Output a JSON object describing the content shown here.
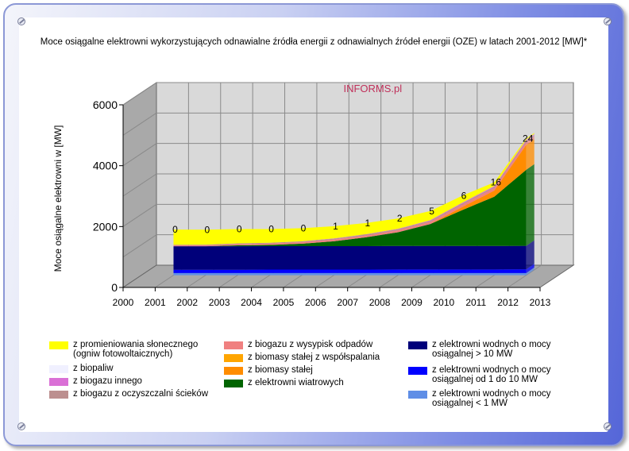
{
  "title": "Moce osiągalne elektrowni wykorzystujących odnawialne źródła energii z odnawialnych źródeł energii (OZE) w latach 2001-2012 [MW]*",
  "watermark": "INFORMS.pl",
  "chart_data": {
    "type": "area",
    "stacked": true,
    "three_d": true,
    "title": "Moce osiągalne elektrowni wykorzystujących odnawialne źródła energii z odnawialnych źródeł energii (OZE) w latach 2001-2012 [MW]*",
    "xlabel": "",
    "ylabel": "Moce osiągalne elektrowni w [MW]",
    "x": [
      2001,
      2002,
      2003,
      2004,
      2005,
      2006,
      2007,
      2008,
      2009,
      2010,
      2011,
      2012
    ],
    "x_ticks": [
      "2000",
      "2001",
      "2002",
      "2003",
      "2004",
      "2005",
      "2006",
      "2007",
      "2008",
      "2009",
      "2010",
      "2011",
      "2012",
      "2013"
    ],
    "y_ticks": [
      "0",
      "2000",
      "4000",
      "6000"
    ],
    "ylim": [
      0,
      6000
    ],
    "grid": true,
    "legend_position": "bottom",
    "series": [
      {
        "name": "z elektrowni wodnych o mocy osiągalnej < 1 MW",
        "color": "#5f8ee6",
        "values": [
          70,
          70,
          70,
          70,
          70,
          70,
          70,
          70,
          70,
          70,
          70,
          70
        ]
      },
      {
        "name": "z elektrowni wodnych o mocy osiągalnej od 1 do 10 MW",
        "color": "#0000ff",
        "values": [
          110,
          110,
          110,
          115,
          115,
          115,
          115,
          120,
          120,
          120,
          120,
          125
        ]
      },
      {
        "name": "z elektrowni wodnych o mocy osiągalnej > 10 MW",
        "color": "#00007a",
        "values": [
          770,
          770,
          770,
          770,
          770,
          770,
          770,
          770,
          770,
          770,
          770,
          770
        ]
      },
      {
        "name": "z elektrowni wiatrowych",
        "color": "#006400",
        "values": [
          0,
          0,
          30,
          40,
          80,
          160,
          290,
          450,
          720,
          1180,
          1620,
          2500
        ]
      },
      {
        "name": "z biomasy stałej",
        "color": "#ff8c00",
        "values": [
          0,
          0,
          0,
          0,
          0,
          0,
          0,
          0,
          0,
          100,
          200,
          820
        ]
      },
      {
        "name": "z biomasy stałej z współspalania",
        "color": "#ffa500",
        "values": [
          0,
          0,
          0,
          0,
          0,
          0,
          0,
          0,
          0,
          0,
          0,
          0
        ]
      },
      {
        "name": "z biogazu z wysypisk odpadów",
        "color": "#f08080",
        "values": [
          30,
          35,
          40,
          45,
          50,
          55,
          60,
          65,
          70,
          75,
          80,
          85
        ]
      },
      {
        "name": "z biogazu z oczyszczalni ścieków",
        "color": "#bc8f8f",
        "values": [
          20,
          20,
          25,
          25,
          25,
          30,
          30,
          35,
          35,
          40,
          40,
          45
        ]
      },
      {
        "name": "z biogazu innego",
        "color": "#da70d6",
        "values": [
          0,
          0,
          0,
          0,
          5,
          10,
          10,
          15,
          20,
          25,
          30,
          40
        ]
      },
      {
        "name": "z biopaliw",
        "color": "#f0f0ff",
        "values": [
          0,
          0,
          0,
          0,
          0,
          0,
          0,
          0,
          0,
          0,
          0,
          0
        ]
      },
      {
        "name": "z promieniowania słonecznego (ogniw fotowoltaicznych)",
        "color": "#ffff00",
        "values": [
          500,
          490,
          470,
          450,
          430,
          400,
          370,
          340,
          300,
          230,
          120,
          40
        ]
      }
    ],
    "data_labels": [
      "0",
      "0",
      "0",
      "0",
      "0",
      "1",
      "1",
      "2",
      "5",
      "6",
      "16",
      "24"
    ]
  },
  "legend": {
    "col1": [
      {
        "label": "z promieniowania słonecznego (ogniw fotowoltaicznych)",
        "color": "#ffff00"
      },
      {
        "label": "z biopaliw",
        "color": "#f0f0ff"
      },
      {
        "label": "z biogazu innego",
        "color": "#da70d6"
      },
      {
        "label": "z biogazu z oczyszczalni ścieków",
        "color": "#bc8f8f"
      }
    ],
    "col2": [
      {
        "label": "z biogazu z wysypisk odpadów",
        "color": "#f08080"
      },
      {
        "label": "z biomasy stałej z współspalania",
        "color": "#ffa500"
      },
      {
        "label": "z biomasy stałej",
        "color": "#ff8c00"
      },
      {
        "label": "z elektrowni wiatrowych",
        "color": "#006400"
      }
    ],
    "col3": [
      {
        "label": "z elektrowni wodnych o mocy osiągalnej > 10 MW",
        "color": "#00007a"
      },
      {
        "label": "z elektrowni wodnych o mocy osiągalnej od 1 do 10 MW",
        "color": "#0000ff"
      },
      {
        "label": "z elektrowni wodnych o mocy osiągalnej < 1 MW",
        "color": "#5f8ee6"
      }
    ]
  }
}
